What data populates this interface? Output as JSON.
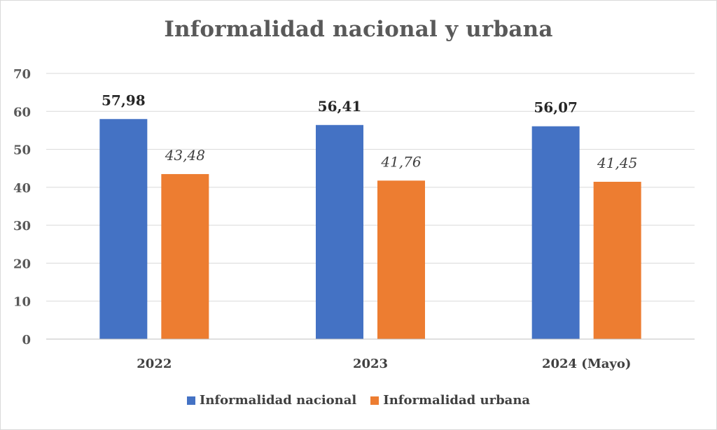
{
  "chart_data": {
    "type": "bar",
    "title": "Informalidad nacional y urbana",
    "categories": [
      "2022",
      "2023",
      "2024 (Mayo)"
    ],
    "series": [
      {
        "name": "Informalidad nacional",
        "values": [
          57.98,
          56.41,
          56.07
        ],
        "labels": [
          "57,98",
          "56,41",
          "56,07"
        ],
        "color": "#4472c4",
        "label_style": "bold"
      },
      {
        "name": "Informalidad urbana",
        "values": [
          43.48,
          41.76,
          41.45
        ],
        "labels": [
          "43,48",
          "41,76",
          "41,45"
        ],
        "color": "#ed7d31",
        "label_style": "italic"
      }
    ],
    "yticks": [
      "0",
      "10",
      "20",
      "30",
      "40",
      "50",
      "60",
      "70"
    ],
    "ylim": [
      0,
      70
    ],
    "grid": true,
    "legend_position": "bottom"
  }
}
